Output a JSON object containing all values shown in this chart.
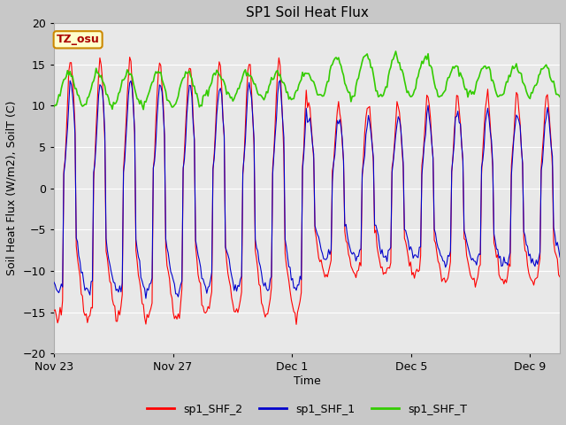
{
  "title": "SP1 Soil Heat Flux",
  "xlabel": "Time",
  "ylabel": "Soil Heat Flux (W/m2), SoilT (C)",
  "ylim": [
    -20,
    20
  ],
  "yticks": [
    -20,
    -15,
    -10,
    -5,
    0,
    5,
    10,
    15,
    20
  ],
  "xtick_labels": [
    "Nov 23",
    "Nov 27",
    "Dec 1",
    "Dec 5",
    "Dec 9"
  ],
  "xtick_positions": [
    0,
    4,
    8,
    12,
    16
  ],
  "xlim": [
    0,
    17
  ],
  "legend_labels": [
    "sp1_SHF_2",
    "sp1_SHF_1",
    "sp1_SHF_T"
  ],
  "line_colors": [
    "#ff0000",
    "#0000cc",
    "#33cc00"
  ],
  "fig_bg_color": "#c8c8c8",
  "plot_bg_color": "#e8e8e8",
  "grid_color": "#ffffff",
  "tz_label": "TZ_osu",
  "tz_text_color": "#aa0000",
  "tz_bg": "#ffffcc",
  "tz_border": "#cc8800",
  "figsize": [
    6.4,
    4.8
  ],
  "dpi": 100
}
